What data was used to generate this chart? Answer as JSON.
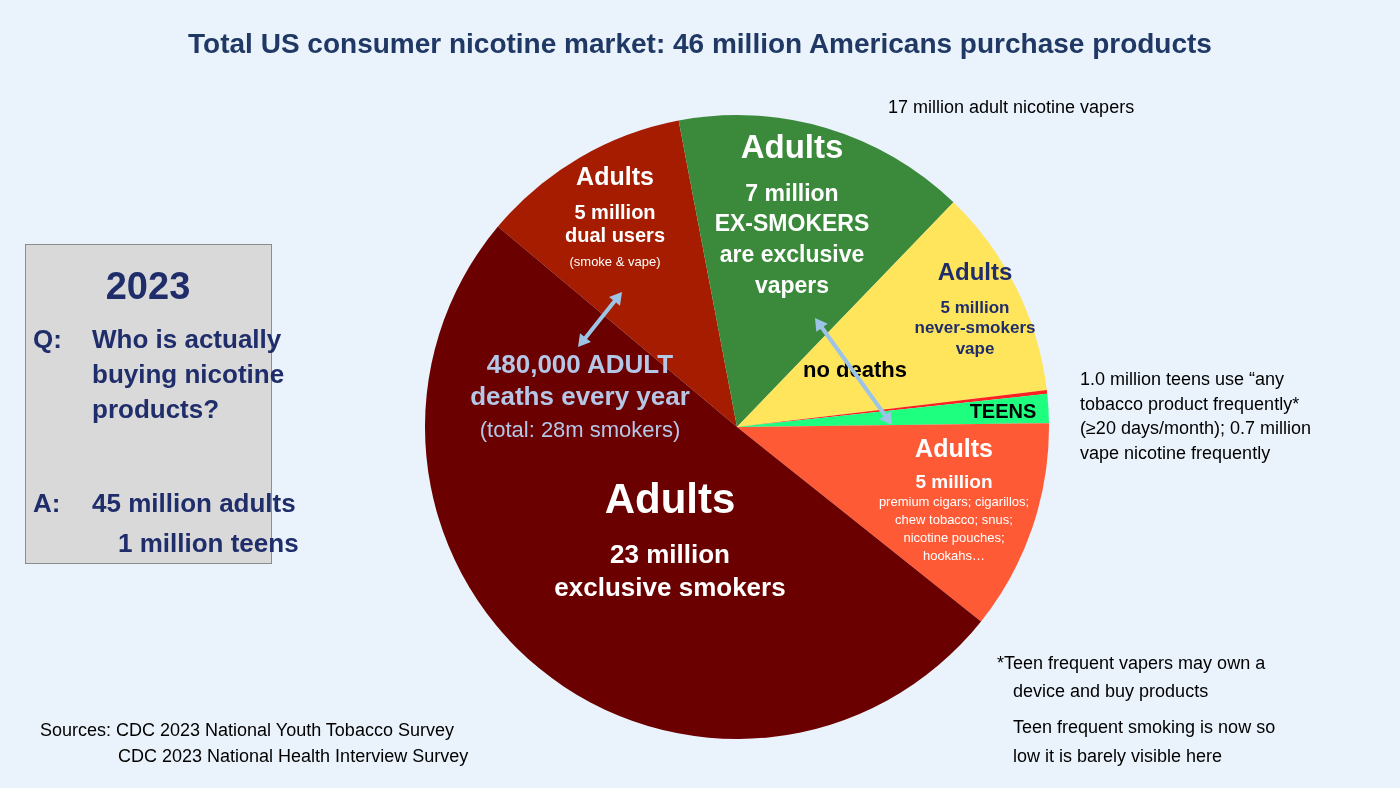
{
  "chart_data": {
    "type": "pie",
    "title": "Total US consumer nicotine market:  46 million Americans purchase products",
    "categories": [
      "Adults\n5 million\ndual users\n(smoke & vape)",
      "Adults\n7 million\nEX-SMOKERS\nare exclusive\nvapers",
      "Adults\n5 million\nnever-smokers\nvape",
      null,
      "TEENS",
      "Adults\n5 million\npremium cigars; cigarillos;\nchew tobacco; snus;\nnicotine pouches;\nhookahs…",
      "Adults\n23 million\nexclusive smokers"
    ],
    "values": [
      10.9,
      15.2,
      10.9,
      0.2,
      1.5,
      10.9,
      50.4
    ],
    "colors": [
      "#a51c00",
      "#3b8a3b",
      "#ffe55c",
      "#ff2020",
      "#1eff80",
      "#ff5a36",
      "#6b0000"
    ],
    "annotations": [
      "17 million adult nicotine vapers",
      "1.0 million teens use “any\ntobacco product frequently*\n(≥20 days/month); 0.7 million\nvape nicotine frequently",
      "480,000 ADULT\ndeaths every year",
      "(total: 28m smokers)",
      "no deaths",
      "*Teen frequent vapers may own a\ndevice and buy products",
      "Teen frequent smoking is now so\nlow it is barely visible here",
      "Sources:  CDC 2023 National Youth Tobacco Survey\nCDC 2023 National Health Interview Survey",
      "2023",
      "Q:",
      "Who is actually\nbuying nicotine\nproducts?",
      "A:",
      "45 million adults\n1 million teens"
    ]
  }
}
